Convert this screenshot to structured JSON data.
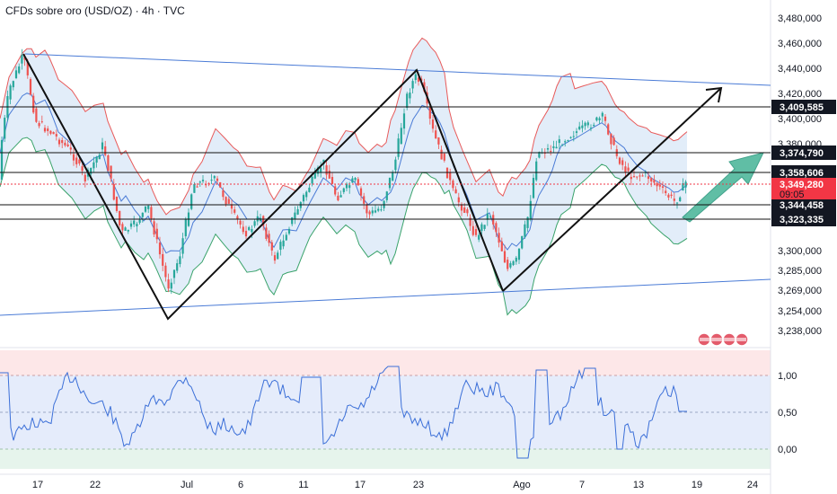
{
  "header": {
    "title": "CFDs sobre oro (USD/OZ) · 4h · TVC"
  },
  "colors": {
    "up": "#26a69a",
    "down": "#ef5350",
    "trend": "#111111",
    "channel": "#4a7bd6",
    "bb_upper": "#e85a5a",
    "bb_lower": "#3aa36b",
    "bb_mid": "#4a7bd6",
    "bb_fill": "#dbe9f7",
    "arrow": "#3fae96",
    "osc": "#3b6fd8",
    "price_tag": "#f23645"
  },
  "chart_data": {
    "type": "candlestick",
    "price_axis": {
      "ticks": [
        "3,480,000",
        "3,460,000",
        "3,440,000",
        "3,420,000",
        "3,400,000",
        "3,380,000",
        "3,300,000",
        "3,285,000",
        "3,269,000",
        "3,254,000",
        "3,238,000"
      ]
    },
    "x_ticks": [
      "17",
      "22",
      "Jul",
      "6",
      "11",
      "17",
      "23",
      "Ago",
      "7",
      "13",
      "19",
      "24"
    ],
    "price_levels": [
      {
        "label": "3,409,585"
      },
      {
        "label": "3,374,790"
      },
      {
        "label": "3,358,606"
      },
      {
        "label": "3,344,458"
      },
      {
        "label": "3,323,335"
      }
    ],
    "current_price": {
      "label": "3,349,280",
      "countdown": "09:05"
    },
    "oscillator": {
      "ticks": [
        "1,00",
        "0,50",
        "0,00"
      ]
    }
  }
}
